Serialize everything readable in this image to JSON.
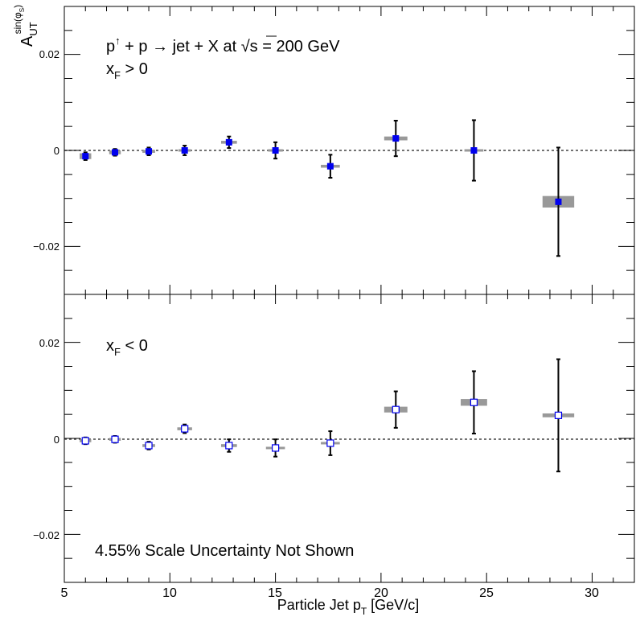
{
  "chart_data": [
    {
      "type": "scatter",
      "panel": "top",
      "title": "p↑ + p → jet + X at √s = 200 GeV",
      "label": "x_F > 0",
      "ylabel": "A_UT^sin(φs)",
      "xlim": [
        5,
        32
      ],
      "ylim": [
        -0.03,
        0.03
      ],
      "yticks": [
        0.02,
        0,
        -0.02
      ],
      "ytick_labels": [
        "0.02",
        "0",
        "−0.02"
      ],
      "reference_line": 0,
      "marker": "filled-square",
      "marker_color": "#0000ee",
      "points": [
        {
          "x": 6.0,
          "y": -0.0012,
          "stat_err": 0.0008,
          "sys_half": 0.0006,
          "sys_width": 0.55
        },
        {
          "x": 7.4,
          "y": -0.0004,
          "stat_err": 0.0007,
          "sys_half": 0.0004,
          "sys_width": 0.55
        },
        {
          "x": 9.0,
          "y": -0.0002,
          "stat_err": 0.0008,
          "sys_half": 0.0003,
          "sys_width": 0.6
        },
        {
          "x": 10.7,
          "y": 0.0,
          "stat_err": 0.001,
          "sys_half": 0.0002,
          "sys_width": 0.6
        },
        {
          "x": 12.8,
          "y": 0.0017,
          "stat_err": 0.0012,
          "sys_half": 0.0003,
          "sys_width": 0.75
        },
        {
          "x": 15.0,
          "y": 0.0,
          "stat_err": 0.0017,
          "sys_half": 0.0002,
          "sys_width": 0.7
        },
        {
          "x": 17.6,
          "y": -0.0033,
          "stat_err": 0.0024,
          "sys_half": 0.0003,
          "sys_width": 0.9
        },
        {
          "x": 20.7,
          "y": 0.0025,
          "stat_err": 0.0037,
          "sys_half": 0.0004,
          "sys_width": 1.1
        },
        {
          "x": 24.4,
          "y": 0.0,
          "stat_err": 0.0063,
          "sys_half": 0.0001,
          "sys_width": 0.9
        },
        {
          "x": 28.4,
          "y": -0.0107,
          "stat_err": 0.0113,
          "sys_half": 0.0012,
          "sys_width": 1.5
        }
      ]
    },
    {
      "type": "scatter",
      "panel": "bottom",
      "label": "x_F < 0",
      "annotation": "4.55% Scale Uncertainty Not Shown",
      "xlabel": "Particle Jet p_T [GeV/c]",
      "xlim": [
        5,
        32
      ],
      "ylim": [
        -0.03,
        0.03
      ],
      "xticks": [
        5,
        10,
        15,
        20,
        25,
        30
      ],
      "xtick_labels": [
        "5",
        "10",
        "15",
        "20",
        "25",
        "30"
      ],
      "yticks": [
        0.02,
        0,
        -0.02
      ],
      "ytick_labels": [
        "0.02",
        "0",
        "−0.02"
      ],
      "reference_line": 0,
      "marker": "open-square",
      "marker_color": "#0000ee",
      "points": [
        {
          "x": 6.0,
          "y": -0.0005,
          "stat_err": 0.0007,
          "sys_half": 0.0003,
          "sys_width": 0.55
        },
        {
          "x": 7.4,
          "y": -0.0002,
          "stat_err": 0.0007,
          "sys_half": 0.0003,
          "sys_width": 0.55
        },
        {
          "x": 9.0,
          "y": -0.0015,
          "stat_err": 0.0008,
          "sys_half": 0.0003,
          "sys_width": 0.6
        },
        {
          "x": 10.7,
          "y": 0.002,
          "stat_err": 0.0009,
          "sys_half": 0.0003,
          "sys_width": 0.7
        },
        {
          "x": 12.8,
          "y": -0.0015,
          "stat_err": 0.0013,
          "sys_half": 0.0003,
          "sys_width": 0.75
        },
        {
          "x": 15.0,
          "y": -0.002,
          "stat_err": 0.0018,
          "sys_half": 0.0002,
          "sys_width": 0.9
        },
        {
          "x": 17.6,
          "y": -0.001,
          "stat_err": 0.0025,
          "sys_half": 0.0001,
          "sys_width": 0.9
        },
        {
          "x": 20.7,
          "y": 0.006,
          "stat_err": 0.0038,
          "sys_half": 0.0006,
          "sys_width": 1.1
        },
        {
          "x": 24.4,
          "y": 0.0075,
          "stat_err": 0.0065,
          "sys_half": 0.0007,
          "sys_width": 1.25
        },
        {
          "x": 28.4,
          "y": 0.0048,
          "stat_err": 0.0117,
          "sys_half": 0.0004,
          "sys_width": 1.5
        }
      ]
    }
  ],
  "colors": {
    "marker": "#0000ee",
    "systematic_band": "#999999",
    "error_bar": "#000000",
    "reference_line": "#444444"
  }
}
